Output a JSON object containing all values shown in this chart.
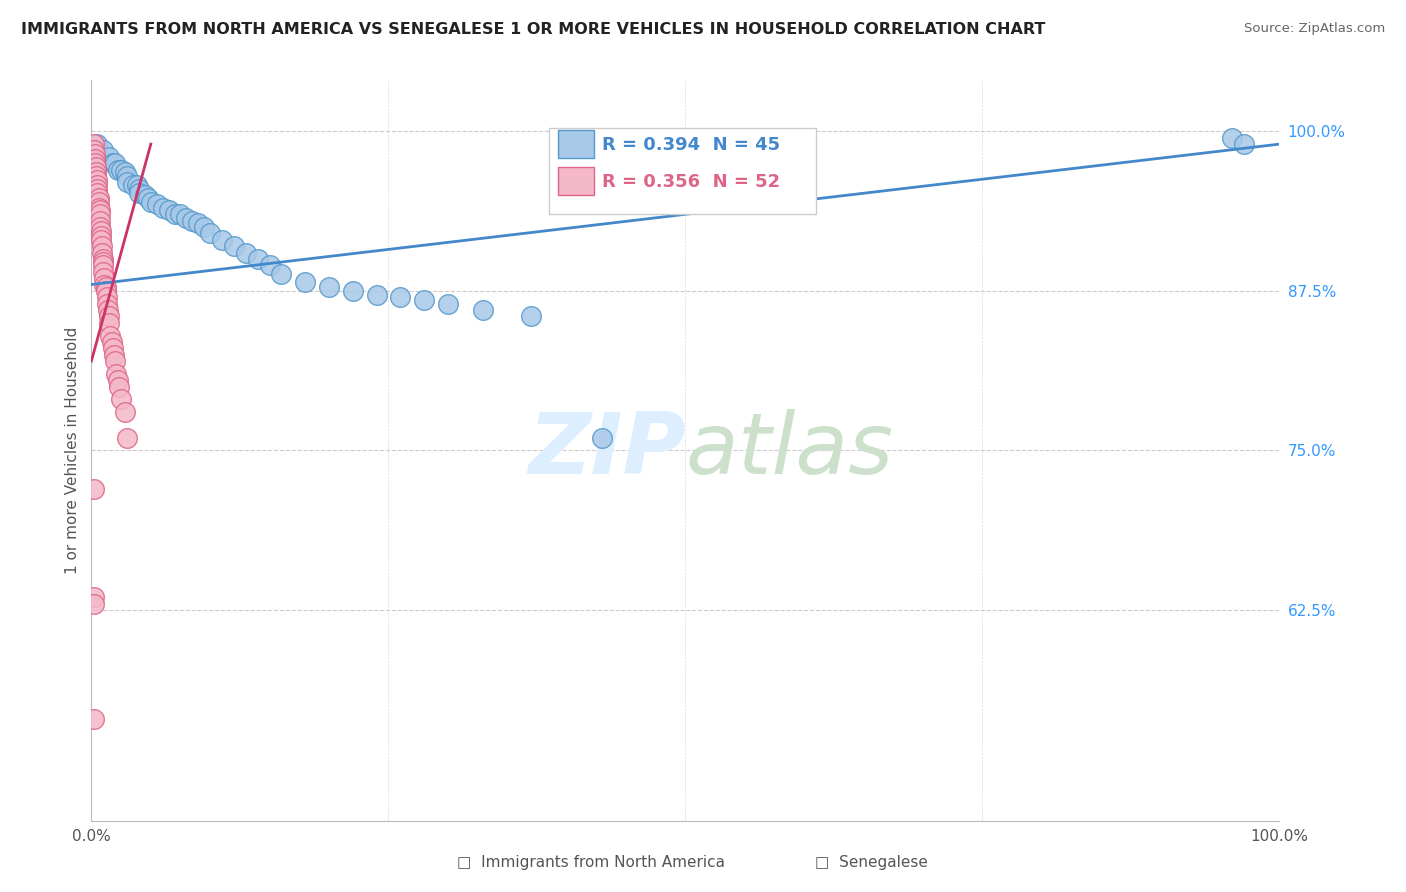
{
  "title": "IMMIGRANTS FROM NORTH AMERICA VS SENEGALESE 1 OR MORE VEHICLES IN HOUSEHOLD CORRELATION CHART",
  "source": "Source: ZipAtlas.com",
  "ylabel": "1 or more Vehicles in Household",
  "xlim": [
    0.0,
    1.0
  ],
  "ylim": [
    0.46,
    1.04
  ],
  "yticks": [
    0.625,
    0.75,
    0.875,
    1.0
  ],
  "ytick_labels": [
    "62.5%",
    "75.0%",
    "87.5%",
    "100.0%"
  ],
  "xticks": [
    0.0,
    0.25,
    0.5,
    0.75,
    1.0
  ],
  "xtick_labels": [
    "0.0%",
    "",
    "",
    "",
    "100.0%"
  ],
  "legend_blue_label": "Immigrants from North America",
  "legend_pink_label": "Senegalese",
  "R_blue": 0.394,
  "N_blue": 45,
  "R_pink": 0.356,
  "N_pink": 52,
  "blue_color": "#a8c8e8",
  "pink_color": "#f4b8c8",
  "blue_edge_color": "#5599cc",
  "pink_edge_color": "#dd6688",
  "blue_line_color": "#4488cc",
  "pink_line_color": "#cc3366",
  "blue_scatter_x": [
    0.005,
    0.01,
    0.015,
    0.018,
    0.02,
    0.022,
    0.025,
    0.028,
    0.03,
    0.03,
    0.035,
    0.038,
    0.04,
    0.04,
    0.045,
    0.048,
    0.05,
    0.055,
    0.06,
    0.065,
    0.07,
    0.075,
    0.08,
    0.085,
    0.09,
    0.095,
    0.1,
    0.11,
    0.12,
    0.13,
    0.14,
    0.15,
    0.16,
    0.18,
    0.2,
    0.22,
    0.24,
    0.26,
    0.28,
    0.3,
    0.33,
    0.37,
    0.43,
    0.96,
    0.97
  ],
  "blue_scatter_y": [
    0.99,
    0.985,
    0.98,
    0.975,
    0.975,
    0.97,
    0.97,
    0.968,
    0.965,
    0.96,
    0.958,
    0.958,
    0.955,
    0.952,
    0.95,
    0.948,
    0.945,
    0.943,
    0.94,
    0.938,
    0.935,
    0.935,
    0.932,
    0.93,
    0.928,
    0.925,
    0.92,
    0.915,
    0.91,
    0.905,
    0.9,
    0.895,
    0.888,
    0.882,
    0.878,
    0.875,
    0.872,
    0.87,
    0.868,
    0.865,
    0.86,
    0.855,
    0.76,
    0.995,
    0.99
  ],
  "pink_scatter_x": [
    0.002,
    0.002,
    0.003,
    0.003,
    0.003,
    0.004,
    0.004,
    0.004,
    0.005,
    0.005,
    0.005,
    0.005,
    0.006,
    0.006,
    0.006,
    0.007,
    0.007,
    0.007,
    0.007,
    0.008,
    0.008,
    0.008,
    0.009,
    0.009,
    0.01,
    0.01,
    0.01,
    0.01,
    0.011,
    0.011,
    0.012,
    0.012,
    0.013,
    0.013,
    0.014,
    0.015,
    0.015,
    0.016,
    0.017,
    0.018,
    0.019,
    0.02,
    0.021,
    0.022,
    0.023,
    0.025,
    0.028,
    0.03,
    0.002,
    0.002,
    0.002,
    0.002
  ],
  "pink_scatter_y": [
    0.99,
    0.985,
    0.982,
    0.978,
    0.975,
    0.972,
    0.968,
    0.965,
    0.962,
    0.958,
    0.955,
    0.952,
    0.948,
    0.945,
    0.94,
    0.938,
    0.935,
    0.93,
    0.925,
    0.922,
    0.918,
    0.915,
    0.91,
    0.905,
    0.9,
    0.898,
    0.895,
    0.89,
    0.885,
    0.88,
    0.878,
    0.875,
    0.87,
    0.865,
    0.86,
    0.855,
    0.85,
    0.84,
    0.835,
    0.83,
    0.825,
    0.82,
    0.81,
    0.805,
    0.8,
    0.79,
    0.78,
    0.76,
    0.72,
    0.635,
    0.63,
    0.54
  ],
  "blue_trend_x0": 0.0,
  "blue_trend_y0": 0.88,
  "blue_trend_x1": 1.0,
  "blue_trend_y1": 0.99,
  "pink_trend_x0": 0.0,
  "pink_trend_y0": 0.82,
  "pink_trend_x1": 0.05,
  "pink_trend_y1": 0.99
}
